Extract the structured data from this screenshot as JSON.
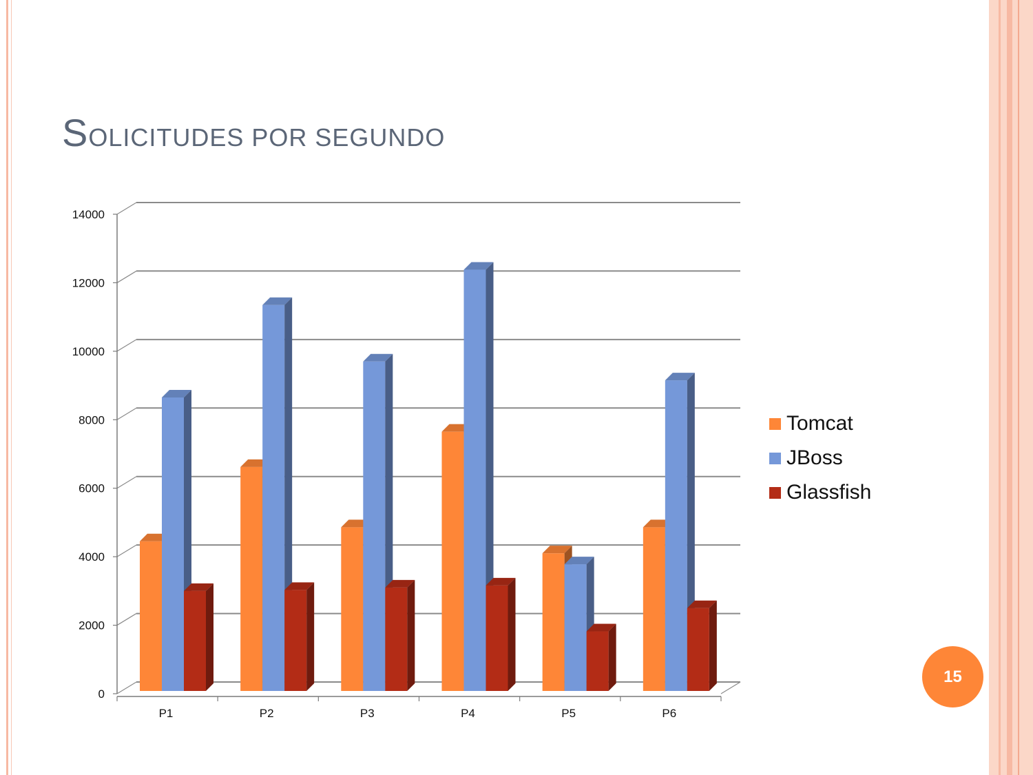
{
  "slide": {
    "title": "Solicitudes por segundo",
    "page_number": "15",
    "colors": {
      "accent": "#fe8637",
      "border_light": "#fbd7c8",
      "border_mid": "#f7b9a3",
      "title": "#5b6677"
    }
  },
  "chart_data": {
    "type": "bar",
    "title": "",
    "xlabel": "",
    "ylabel": "",
    "ylim": [
      0,
      14000
    ],
    "yticks": [
      0,
      2000,
      4000,
      6000,
      8000,
      10000,
      12000,
      14000
    ],
    "grid": true,
    "legend_position": "right",
    "categories": [
      "P1",
      "P2",
      "P3",
      "P4",
      "P5",
      "P6"
    ],
    "series": [
      {
        "name": "Tomcat",
        "color": "#fe8637",
        "values": [
          4450,
          6620,
          4860,
          7650,
          4100,
          4860
        ]
      },
      {
        "name": "JBoss",
        "color": "#7598d9",
        "values": [
          8650,
          11350,
          9700,
          12380,
          3780,
          9150
        ]
      },
      {
        "name": "Glassfish",
        "color": "#b32c16",
        "values": [
          3000,
          3030,
          3100,
          3160,
          1820,
          2500
        ]
      }
    ]
  }
}
